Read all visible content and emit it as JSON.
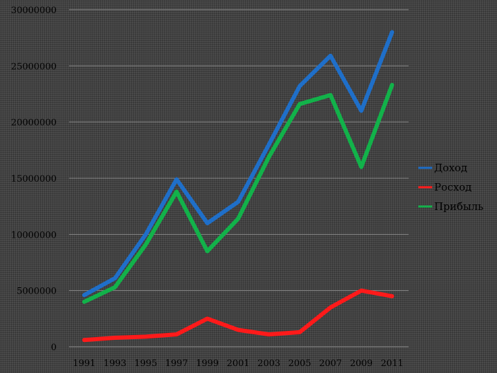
{
  "chart_data": {
    "type": "line",
    "x": [
      "1991",
      "1993",
      "1995",
      "1997",
      "1999",
      "2001",
      "2003",
      "2005",
      "2007",
      "2009",
      "2011"
    ],
    "series": [
      {
        "name": "Доход",
        "color": "#1f6fc9",
        "values": [
          4600000,
          6100000,
          10000000,
          14900000,
          11000000,
          12900000,
          18000000,
          23200000,
          25900000,
          21000000,
          28000000
        ]
      },
      {
        "name": "Росход",
        "color": "#ff1a1a",
        "values": [
          600000,
          800000,
          900000,
          1100000,
          2500000,
          1500000,
          1100000,
          1300000,
          3500000,
          5000000,
          4500000
        ]
      },
      {
        "name": "Прибыль",
        "color": "#12b24a",
        "values": [
          4000000,
          5300000,
          9100000,
          13800000,
          8500000,
          11400000,
          16900000,
          21600000,
          22400000,
          16000000,
          23300000
        ]
      }
    ],
    "yticks": [
      "0",
      "5000000",
      "10000000",
      "15000000",
      "20000000",
      "25000000",
      "30000000"
    ],
    "ylim": [
      0,
      30000000
    ],
    "grid": true,
    "legend": "right"
  }
}
